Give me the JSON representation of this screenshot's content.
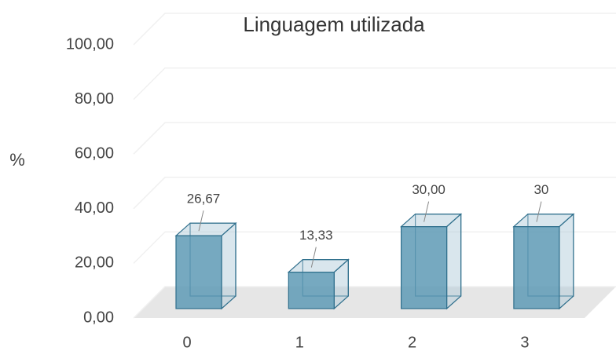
{
  "chart_data": {
    "type": "bar3d",
    "title": "Linguagem utilizada",
    "ylabel": "%",
    "categories": [
      "0",
      "1",
      "2",
      "3"
    ],
    "values": [
      26.67,
      13.33,
      30,
      30
    ],
    "value_labels": [
      "26,67",
      "13,33",
      "30,00",
      "30"
    ],
    "color": "#5e9ab5",
    "ylim": [
      0,
      100
    ],
    "yticks": [
      {
        "value": 0,
        "label": "0,00"
      },
      {
        "value": 20,
        "label": "20,00"
      },
      {
        "value": 40,
        "label": "40,00"
      },
      {
        "value": 60,
        "label": "60,00"
      },
      {
        "value": 80,
        "label": "80,00"
      },
      {
        "value": 100,
        "label": "100,00"
      }
    ],
    "grid": true
  }
}
